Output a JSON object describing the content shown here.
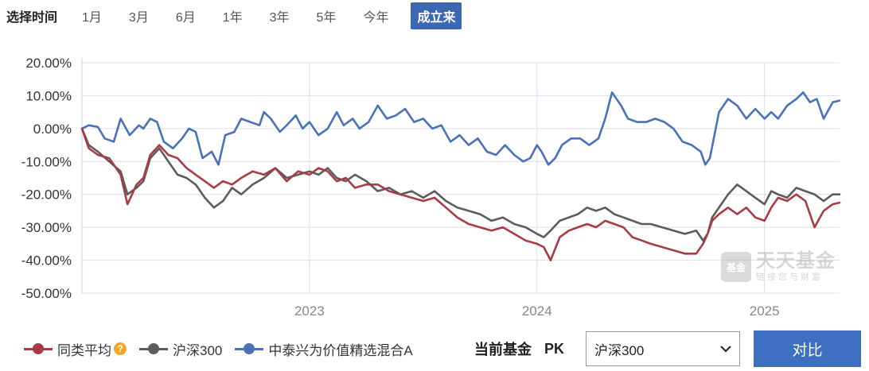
{
  "toolbar": {
    "label": "选择时间",
    "ranges": [
      "1月",
      "3月",
      "6月",
      "1年",
      "3年",
      "5年",
      "今年",
      "成立来"
    ],
    "active_index": 7
  },
  "legend": {
    "items": [
      {
        "name": "同类平均",
        "color": "#a83c46",
        "help_icon": "question-icon"
      },
      {
        "name": "沪深300",
        "color": "#5c5c5c"
      },
      {
        "name": "中泰兴为价值精选混合A",
        "color": "#4a72b8"
      }
    ]
  },
  "pk": {
    "label": "当前基金",
    "word": "PK",
    "select_value": "沪深300",
    "compare_label": "对比"
  },
  "watermark": {
    "badge": "基金",
    "main": "天天基金",
    "sub": "链接您与财富"
  },
  "chart_data": {
    "type": "line",
    "y_ticks": [
      "20.00%",
      "10.00%",
      "0.00%",
      "-10.00%",
      "-20.00%",
      "-30.00%",
      "-40.00%",
      "-50.00%"
    ],
    "ylim": [
      -50,
      20
    ],
    "xlim": [
      2022.0,
      2025.33
    ],
    "x_ticks": [
      {
        "label": "2023",
        "x": 2023.0
      },
      {
        "label": "2024",
        "x": 2024.0
      },
      {
        "label": "2025",
        "x": 2025.0
      }
    ],
    "grid": true,
    "series": [
      {
        "name": "中泰兴为价值精选混合A",
        "color": "#4a72b8",
        "x": [
          2022.0,
          2022.03,
          2022.07,
          2022.1,
          2022.14,
          2022.17,
          2022.21,
          2022.25,
          2022.27,
          2022.3,
          2022.33,
          2022.36,
          2022.4,
          2022.44,
          2022.47,
          2022.5,
          2022.53,
          2022.57,
          2022.6,
          2022.63,
          2022.67,
          2022.7,
          2022.74,
          2022.78,
          2022.8,
          2022.83,
          2022.87,
          2022.9,
          2022.94,
          2022.97,
          2023.0,
          2023.04,
          2023.08,
          2023.12,
          2023.15,
          2023.19,
          2023.22,
          2023.26,
          2023.3,
          2023.34,
          2023.38,
          2023.42,
          2023.46,
          2023.5,
          2023.54,
          2023.58,
          2023.62,
          2023.66,
          2023.7,
          2023.74,
          2023.78,
          2023.82,
          2023.86,
          2023.9,
          2023.94,
          2023.97,
          2024.0,
          2024.02,
          2024.05,
          2024.08,
          2024.11,
          2024.15,
          2024.19,
          2024.23,
          2024.27,
          2024.3,
          2024.33,
          2024.37,
          2024.4,
          2024.44,
          2024.48,
          2024.52,
          2024.56,
          2024.6,
          2024.64,
          2024.68,
          2024.72,
          2024.74,
          2024.76,
          2024.8,
          2024.84,
          2024.88,
          2024.92,
          2024.96,
          2025.0,
          2025.03,
          2025.06,
          2025.1,
          2025.14,
          2025.17,
          2025.2,
          2025.23,
          2025.26,
          2025.3,
          2025.33
        ],
        "y": [
          0,
          1,
          0.5,
          -3,
          -4,
          3,
          -2,
          1,
          0,
          3,
          2,
          -4,
          -6,
          -3,
          0,
          -1,
          -9,
          -7,
          -11,
          -2,
          -1,
          3,
          2,
          1,
          5,
          3,
          -1,
          1,
          4,
          0,
          2,
          -2,
          0,
          5,
          1,
          3,
          0,
          2,
          7,
          3,
          4,
          6,
          2,
          3,
          0,
          1,
          -4,
          -2,
          -5,
          -3,
          -7,
          -8,
          -5,
          -8,
          -10,
          -9,
          -5,
          -7,
          -11,
          -9,
          -5,
          -3,
          -3,
          -5,
          -3,
          3,
          11,
          7,
          3,
          2,
          2,
          3,
          2,
          0,
          -4,
          -5,
          -7,
          -11,
          -9,
          5,
          9,
          7,
          3,
          6,
          3,
          5,
          3,
          7,
          9,
          11,
          8,
          9,
          3,
          8,
          8.5
        ]
      },
      {
        "name": "沪深300",
        "color": "#5c5c5c",
        "x": [
          2022.0,
          2022.03,
          2022.07,
          2022.12,
          2022.17,
          2022.2,
          2022.24,
          2022.27,
          2022.3,
          2022.34,
          2022.38,
          2022.42,
          2022.46,
          2022.5,
          2022.54,
          2022.58,
          2022.62,
          2022.66,
          2022.7,
          2022.75,
          2022.8,
          2022.85,
          2022.9,
          2022.95,
          2023.0,
          2023.04,
          2023.08,
          2023.12,
          2023.16,
          2023.2,
          2023.25,
          2023.3,
          2023.35,
          2023.4,
          2023.45,
          2023.5,
          2023.55,
          2023.6,
          2023.65,
          2023.7,
          2023.75,
          2023.8,
          2023.85,
          2023.9,
          2023.95,
          2024.0,
          2024.03,
          2024.06,
          2024.1,
          2024.14,
          2024.18,
          2024.22,
          2024.26,
          2024.3,
          2024.34,
          2024.38,
          2024.42,
          2024.46,
          2024.5,
          2024.55,
          2024.6,
          2024.65,
          2024.7,
          2024.73,
          2024.75,
          2024.77,
          2024.8,
          2024.84,
          2024.88,
          2024.92,
          2024.96,
          2025.0,
          2025.03,
          2025.06,
          2025.1,
          2025.14,
          2025.18,
          2025.22,
          2025.26,
          2025.3,
          2025.33
        ],
        "y": [
          0,
          -5,
          -7,
          -10,
          -13,
          -20,
          -18,
          -16,
          -9,
          -6,
          -10,
          -14,
          -15,
          -17,
          -21,
          -24,
          -22,
          -18,
          -20,
          -17,
          -15,
          -12,
          -15,
          -14,
          -13,
          -14,
          -12,
          -15,
          -16,
          -14,
          -16,
          -19,
          -18,
          -20,
          -19,
          -21,
          -19,
          -22,
          -24,
          -25,
          -26,
          -28,
          -27,
          -29,
          -30,
          -32,
          -33,
          -31,
          -28,
          -27,
          -26,
          -24,
          -25,
          -24,
          -26,
          -27,
          -28,
          -29,
          -29,
          -30,
          -31,
          -32,
          -31,
          -34,
          -32,
          -27,
          -24,
          -20,
          -17,
          -19,
          -21,
          -23,
          -19,
          -20,
          -21,
          -18,
          -19,
          -20,
          -22,
          -20,
          -20
        ]
      },
      {
        "name": "同类平均",
        "color": "#a83c46",
        "x": [
          2022.0,
          2022.03,
          2022.07,
          2022.12,
          2022.17,
          2022.2,
          2022.24,
          2022.27,
          2022.3,
          2022.34,
          2022.38,
          2022.42,
          2022.46,
          2022.5,
          2022.54,
          2022.58,
          2022.62,
          2022.66,
          2022.7,
          2022.75,
          2022.8,
          2022.85,
          2022.9,
          2022.95,
          2023.0,
          2023.04,
          2023.08,
          2023.12,
          2023.16,
          2023.2,
          2023.25,
          2023.3,
          2023.35,
          2023.4,
          2023.45,
          2023.5,
          2023.55,
          2023.6,
          2023.65,
          2023.7,
          2023.75,
          2023.8,
          2023.85,
          2023.9,
          2023.95,
          2024.0,
          2024.03,
          2024.06,
          2024.1,
          2024.14,
          2024.18,
          2024.22,
          2024.26,
          2024.3,
          2024.34,
          2024.38,
          2024.42,
          2024.46,
          2024.5,
          2024.55,
          2024.6,
          2024.65,
          2024.7,
          2024.73,
          2024.75,
          2024.77,
          2024.8,
          2024.84,
          2024.88,
          2024.92,
          2024.96,
          2025.0,
          2025.03,
          2025.06,
          2025.1,
          2025.14,
          2025.18,
          2025.22,
          2025.26,
          2025.3,
          2025.33
        ],
        "y": [
          0,
          -6,
          -8,
          -9,
          -14,
          -23,
          -17,
          -15,
          -8,
          -5,
          -8,
          -9,
          -12,
          -14,
          -16,
          -18,
          -16,
          -17,
          -15,
          -13,
          -14,
          -12,
          -16,
          -13,
          -14,
          -12,
          -13,
          -16,
          -15,
          -18,
          -17,
          -17,
          -19,
          -20,
          -21,
          -22,
          -21,
          -24,
          -27,
          -29,
          -30,
          -31,
          -30,
          -32,
          -34,
          -35,
          -36,
          -40,
          -33,
          -31,
          -30,
          -29,
          -30,
          -28,
          -29,
          -30,
          -33,
          -34,
          -35,
          -36,
          -37,
          -38,
          -38,
          -35,
          -32,
          -28,
          -26,
          -24,
          -26,
          -24,
          -27,
          -28,
          -24,
          -21,
          -22,
          -20,
          -22,
          -30,
          -25,
          -23,
          -22.5
        ]
      }
    ]
  }
}
